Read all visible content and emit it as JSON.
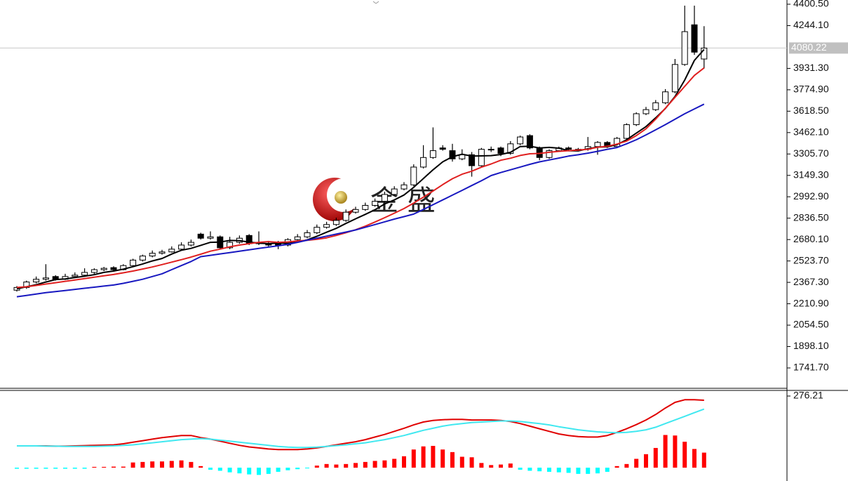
{
  "chart_data": [
    {
      "type": "candlestick",
      "open": [
        2310,
        2330,
        2370,
        2390,
        2410,
        2390,
        2410,
        2420,
        2440,
        2460,
        2475,
        2460,
        2490,
        2530,
        2560,
        2580,
        2590,
        2610,
        2640,
        2720,
        2690,
        2700,
        2620,
        2660,
        2710,
        2660,
        2650,
        2660,
        2640,
        2680,
        2700,
        2730,
        2770,
        2790,
        2820,
        2880,
        2900,
        2930,
        2960,
        3010,
        3050,
        3080,
        3210,
        3280,
        3350,
        3330,
        3270,
        3300,
        3220,
        3340,
        3350,
        3310,
        3380,
        3440,
        3350,
        3280,
        3330,
        3350,
        3340,
        3340,
        3360,
        3390,
        3360,
        3420,
        3520,
        3600,
        3630,
        3680,
        3760,
        3960,
        4250,
        4000
      ],
      "high": [
        2340,
        2380,
        2410,
        2500,
        2420,
        2430,
        2440,
        2470,
        2470,
        2480,
        2485,
        2500,
        2540,
        2570,
        2600,
        2605,
        2630,
        2660,
        2680,
        2730,
        2740,
        2710,
        2700,
        2710,
        2720,
        2740,
        2670,
        2670,
        2690,
        2720,
        2750,
        2790,
        2810,
        2840,
        2900,
        2920,
        2950,
        2980,
        3030,
        3070,
        3100,
        3230,
        3370,
        3500,
        3370,
        3380,
        3340,
        3320,
        3350,
        3360,
        3360,
        3400,
        3440,
        3450,
        3360,
        3340,
        3360,
        3360,
        3350,
        3430,
        3400,
        3400,
        3430,
        3530,
        3610,
        3650,
        3700,
        3780,
        4000,
        4390,
        4390,
        4240
      ],
      "low": [
        2300,
        2320,
        2360,
        2380,
        2380,
        2385,
        2400,
        2410,
        2430,
        2450,
        2450,
        2455,
        2480,
        2520,
        2550,
        2570,
        2585,
        2600,
        2630,
        2680,
        2680,
        2610,
        2610,
        2650,
        2640,
        2640,
        2630,
        2610,
        2630,
        2670,
        2690,
        2720,
        2760,
        2780,
        2810,
        2870,
        2890,
        2920,
        2950,
        3000,
        3040,
        3070,
        3200,
        3270,
        3330,
        3250,
        3260,
        3140,
        3210,
        3320,
        3290,
        3300,
        3370,
        3340,
        3260,
        3270,
        3320,
        3330,
        3330,
        3330,
        3300,
        3350,
        3350,
        3410,
        3510,
        3590,
        3620,
        3670,
        3750,
        3950,
        4030,
        3930
      ],
      "close": [
        2330,
        2370,
        2390,
        2400,
        2390,
        2410,
        2420,
        2440,
        2460,
        2470,
        2460,
        2490,
        2530,
        2560,
        2580,
        2590,
        2610,
        2640,
        2660,
        2690,
        2700,
        2620,
        2660,
        2690,
        2650,
        2650,
        2640,
        2640,
        2680,
        2700,
        2730,
        2770,
        2790,
        2820,
        2880,
        2900,
        2930,
        2960,
        3010,
        3050,
        3080,
        3210,
        3280,
        3330,
        3340,
        3270,
        3300,
        3220,
        3340,
        3340,
        3310,
        3380,
        3430,
        3350,
        3280,
        3330,
        3350,
        3340,
        3340,
        3360,
        3390,
        3360,
        3420,
        3520,
        3600,
        3630,
        3680,
        3760,
        3960,
        4200,
        4050,
        4080
      ],
      "up_color": "#ffffff",
      "down_color": "#000000",
      "lines": [
        {
          "color": "#000000",
          "values": [
            2320,
            2335,
            2350,
            2370,
            2388,
            2392,
            2402,
            2412,
            2424,
            2440,
            2450,
            2464,
            2482,
            2502,
            2524,
            2542,
            2574,
            2602,
            2616,
            2638,
            2660,
            2662,
            2674,
            2672,
            2662,
            2654,
            2650,
            2654,
            2652,
            2662,
            2678,
            2704,
            2734,
            2762,
            2798,
            2832,
            2864,
            2898,
            2940,
            2970,
            3006,
            3062,
            3126,
            3190,
            3248,
            3286,
            3304,
            3290,
            3292,
            3294,
            3302,
            3318,
            3360,
            3362,
            3350,
            3354,
            3348,
            3330,
            3328,
            3344,
            3356,
            3358,
            3374,
            3410,
            3458,
            3506,
            3570,
            3638,
            3726,
            3846,
            3990,
            4070
          ]
        },
        {
          "color": "#e02020",
          "values": [
            2330,
            2335,
            2345,
            2355,
            2365,
            2375,
            2385,
            2395,
            2405,
            2415,
            2425,
            2437,
            2450,
            2465,
            2480,
            2497,
            2515,
            2533,
            2552,
            2573,
            2595,
            2610,
            2627,
            2640,
            2650,
            2660,
            2665,
            2660,
            2663,
            2670,
            2675,
            2682,
            2693,
            2710,
            2730,
            2752,
            2778,
            2808,
            2840,
            2873,
            2907,
            2947,
            2990,
            3035,
            3082,
            3125,
            3158,
            3180,
            3209,
            3233,
            3260,
            3275,
            3295,
            3307,
            3310,
            3318,
            3325,
            3330,
            3335,
            3340,
            3355,
            3362,
            3378,
            3400,
            3440,
            3490,
            3560,
            3640,
            3720,
            3800,
            3880,
            3935
          ]
        },
        {
          "color": "#1818c0",
          "values": [
            2262,
            2272,
            2282,
            2292,
            2300,
            2308,
            2316,
            2324,
            2332,
            2340,
            2348,
            2360,
            2375,
            2390,
            2410,
            2430,
            2460,
            2490,
            2520,
            2555,
            2565,
            2575,
            2585,
            2595,
            2605,
            2615,
            2625,
            2635,
            2645,
            2660,
            2676,
            2690,
            2705,
            2720,
            2735,
            2750,
            2770,
            2790,
            2810,
            2830,
            2848,
            2866,
            2900,
            2935,
            2970,
            3005,
            3040,
            3075,
            3110,
            3148,
            3170,
            3190,
            3210,
            3230,
            3248,
            3262,
            3276,
            3290,
            3300,
            3312,
            3325,
            3340,
            3353,
            3380,
            3410,
            3445,
            3482,
            3520,
            3560,
            3600,
            3635,
            3670
          ]
        }
      ],
      "ylim": [
        1582.5,
        4431.3
      ],
      "yticks": [
        {
          "value": 4400.5,
          "label": "4400.50"
        },
        {
          "value": 4244.1,
          "label": "4244.10"
        },
        {
          "value": 3931.3,
          "label": "3931.30"
        },
        {
          "value": 3774.9,
          "label": "3774.90"
        },
        {
          "value": 3618.5,
          "label": "3618.50"
        },
        {
          "value": 3462.1,
          "label": "3462.10"
        },
        {
          "value": 3305.7,
          "label": "3305.70"
        },
        {
          "value": 3149.3,
          "label": "3149.30"
        },
        {
          "value": 2992.9,
          "label": "2992.90"
        },
        {
          "value": 2836.5,
          "label": "2836.50"
        },
        {
          "value": 2680.1,
          "label": "2680.10"
        },
        {
          "value": 2523.7,
          "label": "2523.70"
        },
        {
          "value": 2367.3,
          "label": "2367.30"
        },
        {
          "value": 2210.9,
          "label": "2210.90"
        },
        {
          "value": 2054.5,
          "label": "2054.50"
        },
        {
          "value": 1898.1,
          "label": "1898.10"
        },
        {
          "value": 1741.7,
          "label": "1741.70"
        }
      ],
      "current_price": 4080.22,
      "watermark": "金 盛"
    },
    {
      "type": "macd",
      "histogram": [
        -4,
        -4,
        -4,
        -4,
        -4,
        -4,
        -4,
        -4,
        3,
        3,
        4,
        4,
        20,
        22,
        24,
        24,
        26,
        28,
        22,
        6,
        -8,
        -12,
        -18,
        -22,
        -26,
        -28,
        -24,
        -16,
        -10,
        -6,
        -2,
        8,
        14,
        12,
        14,
        18,
        22,
        26,
        28,
        34,
        44,
        70,
        82,
        84,
        70,
        60,
        42,
        40,
        18,
        10,
        12,
        16,
        -8,
        -12,
        -14,
        -16,
        -18,
        -20,
        -24,
        -24,
        -22,
        -16,
        6,
        14,
        34,
        52,
        76,
        126,
        124,
        100,
        72,
        58
      ],
      "up_color": "#ff0000",
      "down_color": "#00ffff",
      "lines": [
        {
          "color": "#e00000",
          "values": [
            84,
            84,
            84,
            84,
            83,
            83,
            84,
            85,
            86,
            87,
            88,
            92,
            98,
            104,
            110,
            116,
            120,
            124,
            124,
            116,
            110,
            102,
            94,
            86,
            80,
            76,
            72,
            70,
            70,
            70,
            72,
            76,
            82,
            88,
            94,
            100,
            108,
            118,
            128,
            140,
            152,
            165,
            176,
            182,
            185,
            186,
            186,
            184,
            184,
            184,
            182,
            178,
            170,
            160,
            150,
            140,
            130,
            124,
            120,
            118,
            118,
            124,
            136,
            150,
            166,
            184,
            205,
            230,
            252,
            262,
            262,
            260
          ]
        },
        {
          "color": "#40e8f0",
          "values": [
            84,
            84,
            84,
            83,
            83,
            82,
            82,
            82,
            82,
            83,
            84,
            86,
            88,
            92,
            96,
            100,
            104,
            108,
            110,
            112,
            110,
            106,
            102,
            98,
            94,
            90,
            86,
            82,
            79,
            78,
            78,
            79,
            82,
            85,
            88,
            92,
            96,
            102,
            108,
            116,
            124,
            134,
            144,
            152,
            160,
            166,
            170,
            174,
            176,
            178,
            180,
            180,
            178,
            174,
            170,
            165,
            158,
            152,
            146,
            142,
            138,
            136,
            135,
            136,
            140,
            146,
            156,
            170,
            184,
            198,
            212,
            226
          ]
        }
      ],
      "ylim": [
        -51.45,
        295.2
      ],
      "yticks": [
        276.21
      ]
    }
  ]
}
